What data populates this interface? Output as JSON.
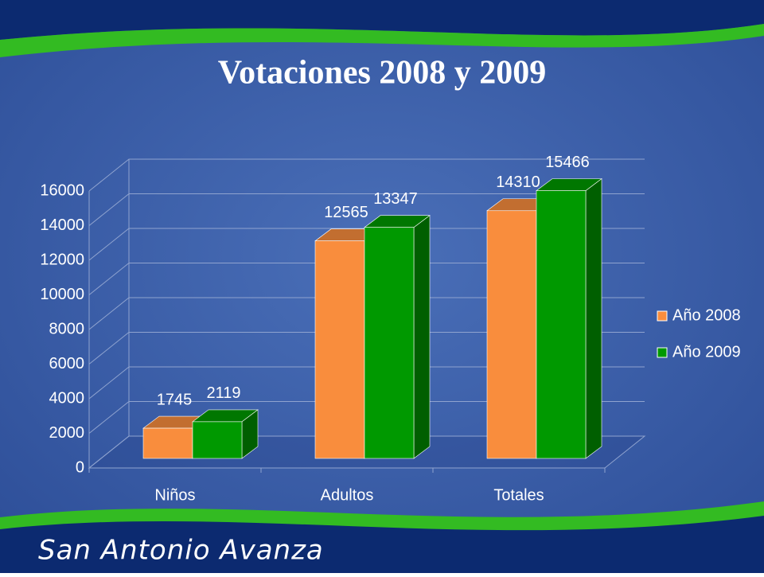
{
  "chart_data": {
    "type": "bar3d",
    "title": "Votaciones 2008 y 2009",
    "categories": [
      "Niños",
      "Adultos",
      "Totales"
    ],
    "series": [
      {
        "name": "Año 2008",
        "color": "#f98d3d",
        "values": [
          1745,
          12565,
          14310
        ]
      },
      {
        "name": "Año 2009",
        "color": "#009900",
        "values": [
          2119,
          13347,
          15466
        ]
      }
    ],
    "ylim": [
      0,
      16000
    ],
    "yticks": [
      0,
      2000,
      4000,
      6000,
      8000,
      10000,
      12000,
      14000,
      16000
    ],
    "grid": true,
    "legend": "right"
  },
  "footer": "San Antonio Avanza"
}
